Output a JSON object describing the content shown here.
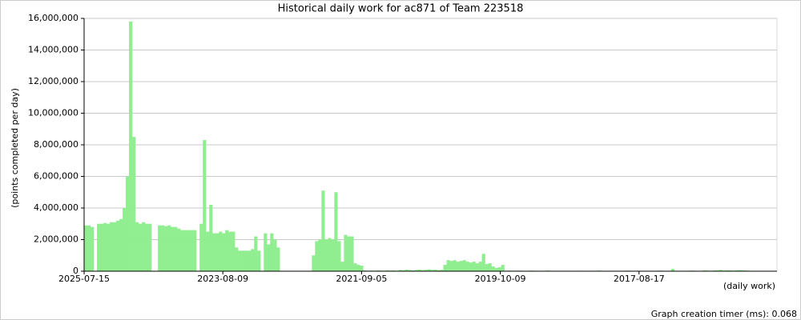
{
  "chart_data": {
    "type": "bar",
    "title": "Historical daily work for ac871 of Team 223518",
    "y_label": "(points completed per day)",
    "x_label": "(daily work)",
    "footer": "Graph creation timer (ms): 0.068",
    "color": "#90ee90",
    "grid": true,
    "xlim": [
      0,
      216
    ],
    "xticks": [
      {
        "value": 0,
        "label": "2025-07-15"
      },
      {
        "value": 43.25,
        "label": "2023-08-09"
      },
      {
        "value": 86.5,
        "label": "2021-09-05"
      },
      {
        "value": 129.75,
        "label": "2019-10-09"
      },
      {
        "value": 173,
        "label": "2017-08-17"
      }
    ],
    "ylim": [
      0,
      16000000
    ],
    "yticks": [
      0,
      {
        "value": 2000000,
        "label": "2,000,000"
      },
      {
        "value": 4000000,
        "label": "4,000,000"
      },
      {
        "value": 6000000,
        "label": "6,000,000"
      },
      {
        "value": 8000000,
        "label": "8,000,000"
      },
      {
        "value": 10000000,
        "label": "10,000,000"
      },
      {
        "value": 12000000,
        "label": "12,000,000"
      },
      {
        "value": 14000000,
        "label": "14,000,000"
      },
      {
        "value": 16000000,
        "label": "16,000,000"
      }
    ],
    "values": [
      2900000,
      2900000,
      2800000,
      0,
      3000000,
      3000000,
      3050000,
      3000000,
      3100000,
      3100000,
      3200000,
      3300000,
      4000000,
      6000000,
      15800000,
      8500000,
      3100000,
      3000000,
      3100000,
      3000000,
      3000000,
      0,
      0,
      2900000,
      2900000,
      2850000,
      2900000,
      2800000,
      2800000,
      2700000,
      2600000,
      2600000,
      2600000,
      2600000,
      2600000,
      0,
      3000000,
      8300000,
      2500000,
      4200000,
      2400000,
      2400000,
      2500000,
      2400000,
      2600000,
      2500000,
      2500000,
      1500000,
      1300000,
      1300000,
      1300000,
      1300000,
      1400000,
      2200000,
      1300000,
      0,
      2400000,
      1700000,
      2400000,
      2000000,
      1500000,
      0,
      0,
      0,
      0,
      0,
      0,
      0,
      0,
      0,
      0,
      1000000,
      1900000,
      2000000,
      5100000,
      2000000,
      2100000,
      2000000,
      5000000,
      1900000,
      600000,
      2300000,
      2200000,
      2200000,
      500000,
      400000,
      350000,
      50000,
      30000,
      40000,
      30000,
      50000,
      40000,
      30000,
      60000,
      40000,
      50000,
      30000,
      80000,
      60000,
      100000,
      70000,
      50000,
      80000,
      100000,
      60000,
      90000,
      120000,
      80000,
      100000,
      60000,
      90000,
      400000,
      700000,
      650000,
      700000,
      600000,
      650000,
      700000,
      600000,
      550000,
      600000,
      500000,
      600000,
      1100000,
      450000,
      500000,
      300000,
      200000,
      250000,
      400000,
      30000,
      40000,
      30000,
      30000,
      40000,
      30000,
      20000,
      30000,
      40000,
      30000,
      30000,
      20000,
      30000,
      40000,
      30000,
      20000,
      30000,
      30000,
      20000,
      30000,
      0,
      0,
      20000,
      30000,
      20000,
      0,
      0,
      20000,
      30000,
      40000,
      20000,
      0,
      20000,
      30000,
      20000,
      30000,
      20000,
      30000,
      40000,
      30000,
      20000,
      30000,
      30000,
      20000,
      0,
      30000,
      20000,
      30000,
      40000,
      30000,
      20000,
      30000,
      150000,
      30000,
      20000,
      30000,
      20000,
      30000,
      40000,
      30000,
      20000,
      30000,
      60000,
      40000,
      30000,
      50000,
      60000,
      80000,
      40000,
      60000,
      50000,
      40000,
      60000,
      70000,
      50000,
      40000,
      0,
      0,
      0,
      0,
      0,
      0,
      0,
      0,
      0
    ]
  }
}
